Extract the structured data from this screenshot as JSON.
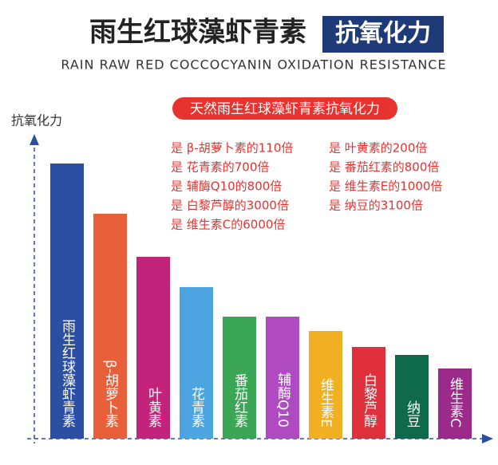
{
  "chart_data": {
    "type": "bar",
    "title": "雨生红球藻虾青素",
    "title_badge": "抗氧化力",
    "subtitle": "RAIN RAW RED COCCOCYANIN  OXIDATION RESISTANCE",
    "y_label": "抗氧化力",
    "annotation_title": "天然雨生红球藻虾青素抗氧化力",
    "annotations_left": [
      "是 β-胡萝卜素的110倍",
      "是 花青素的700倍",
      "是 辅酶Q10的800倍",
      "是 白黎芦醇的3000倍",
      "是 维生素C的6000倍"
    ],
    "annotations_right": [
      "是 叶黄素的200倍",
      "是 番茄红素的800倍",
      "是 维生素E的1000倍",
      "是 纳豆的3100倍"
    ],
    "categories": [
      "雨生红球藻虾青素",
      "β-胡萝卜素",
      "叶黄素",
      "花青素",
      "番茄红素",
      "辅酶Q10",
      "维生素E",
      "白黎芦醇",
      "纳豆",
      "维生素C"
    ],
    "values": [
      345,
      282,
      228,
      190,
      153,
      153,
      135,
      115,
      105,
      88
    ],
    "colors": [
      "#2c4fa4",
      "#e8603a",
      "#c2237b",
      "#4ca4e0",
      "#3ba656",
      "#b04ac0",
      "#f0b022",
      "#e0303c",
      "#0f6a4b",
      "#9b2a8b"
    ],
    "ylim": [
      0,
      380
    ]
  }
}
